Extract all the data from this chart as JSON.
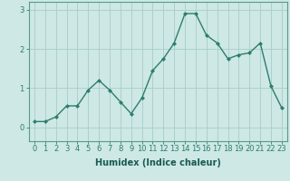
{
  "x": [
    0,
    1,
    2,
    3,
    4,
    5,
    6,
    7,
    8,
    9,
    10,
    11,
    12,
    13,
    14,
    15,
    16,
    17,
    18,
    19,
    20,
    21,
    22,
    23
  ],
  "y": [
    0.15,
    0.15,
    0.27,
    0.55,
    0.55,
    0.95,
    1.2,
    0.95,
    0.65,
    0.35,
    0.75,
    1.45,
    1.75,
    2.15,
    2.9,
    2.9,
    2.35,
    2.15,
    1.75,
    1.85,
    1.9,
    2.15,
    1.05,
    0.5
  ],
  "line_color": "#2e7d6e",
  "marker": "D",
  "marker_size": 2.0,
  "bg_color": "#cde8e5",
  "grid_color": "#a8cdc9",
  "xlabel": "Humidex (Indice chaleur)",
  "xlabel_fontsize": 7,
  "xlabel_color": "#1a5a52",
  "ytick_labels": [
    "0",
    "1",
    "2",
    "3"
  ],
  "ytick_values": [
    0,
    1,
    2,
    3
  ],
  "xticks": [
    0,
    1,
    2,
    3,
    4,
    5,
    6,
    7,
    8,
    9,
    10,
    11,
    12,
    13,
    14,
    15,
    16,
    17,
    18,
    19,
    20,
    21,
    22,
    23
  ],
  "ylim": [
    -0.35,
    3.2
  ],
  "xlim": [
    -0.5,
    23.5
  ],
  "tick_fontsize": 6,
  "tick_color": "#2e7d6e",
  "spine_color": "#5a9a8a",
  "linewidth": 1.0
}
